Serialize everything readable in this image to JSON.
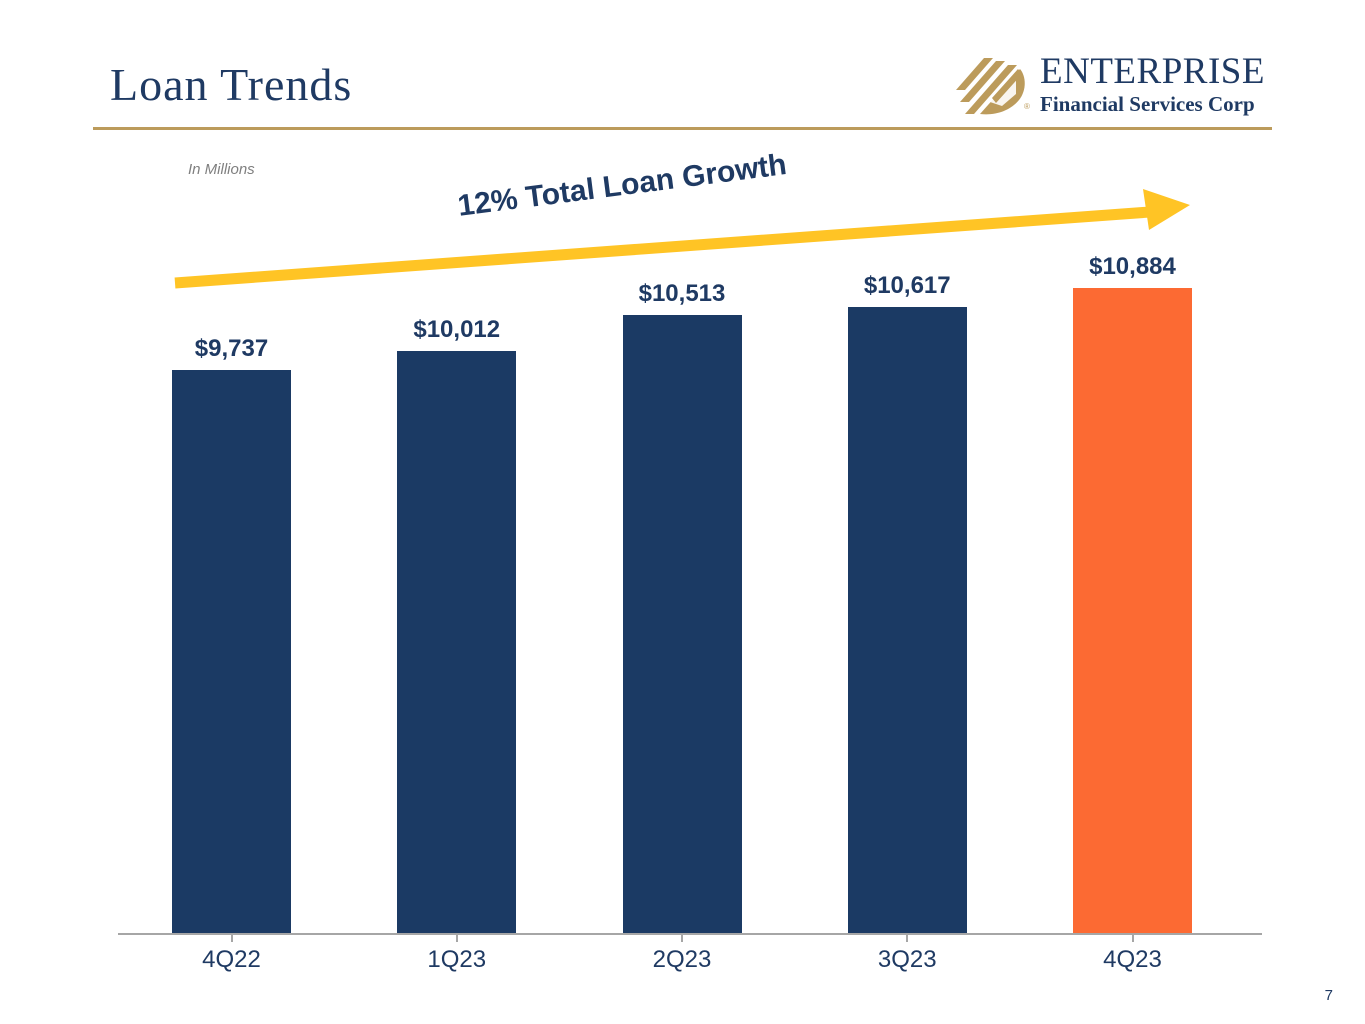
{
  "page": {
    "page_number": "7"
  },
  "header": {
    "title": "Loan Trends",
    "logo": {
      "name": "ENTERPRISE",
      "subtitle": "Financial Services Corp",
      "registered_mark": "®"
    }
  },
  "chart": {
    "units_note": "In Millions",
    "annotation": "12% Total Loan Growth"
  },
  "chart_data": {
    "type": "bar",
    "title": "Loan Trends",
    "units": "In Millions",
    "categories": [
      "4Q22",
      "1Q23",
      "2Q23",
      "3Q23",
      "4Q23"
    ],
    "values": [
      9737,
      10012,
      10513,
      10617,
      10884
    ],
    "value_labels": [
      "$9,737",
      "$10,012",
      "$10,513",
      "$10,617",
      "$10,884"
    ],
    "bar_colors": [
      "#1B3A64",
      "#1B3A64",
      "#1B3A64",
      "#1B3A64",
      "#FC6A33"
    ],
    "annotation": "12% Total Loan Growth",
    "xlabel": "",
    "ylabel": "",
    "grid": "off",
    "legend": "none"
  },
  "colors": {
    "navy": "#1B3A64",
    "navy_text": "#1F3A63",
    "orange": "#FC6A33",
    "arrow_yellow": "#FFC425",
    "gold": "#BC9B5B",
    "axis_gray": "#A6A6A6",
    "muted_gray": "#7F7F7F"
  }
}
